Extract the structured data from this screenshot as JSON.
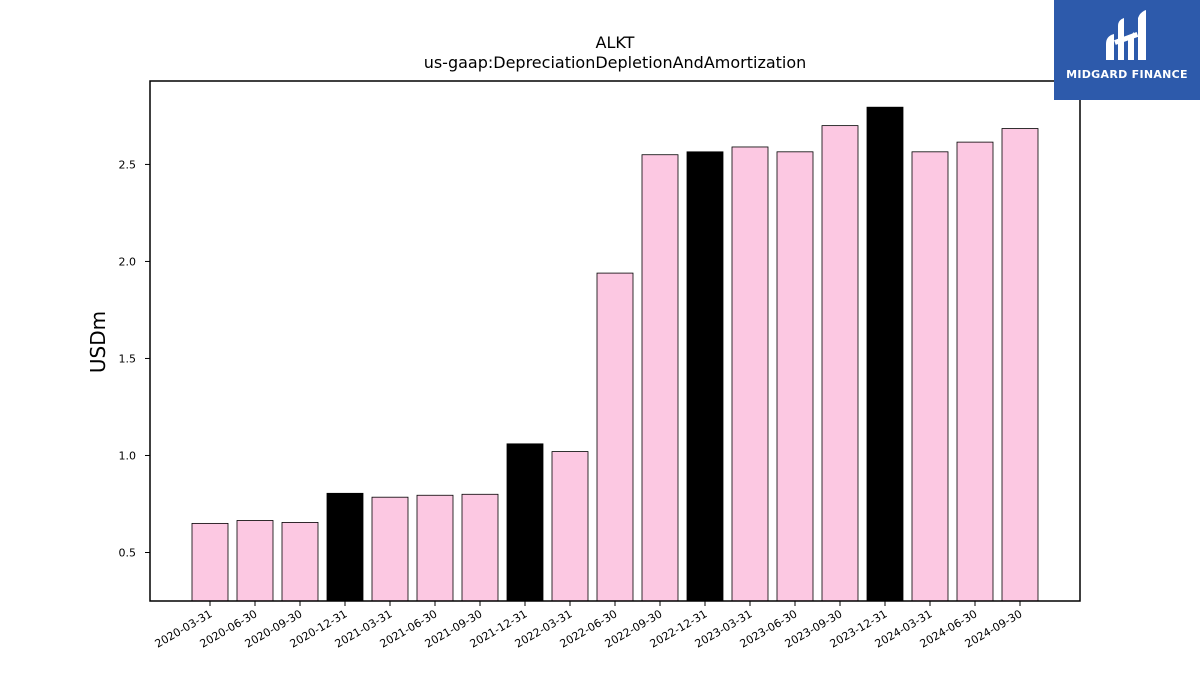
{
  "brand": {
    "name": "MIDGARD FINANCE",
    "bg_color": "#2d5aab"
  },
  "chart_data": {
    "type": "bar",
    "title": "ALKT",
    "subtitle": "us-gaap:DepreciationDepletionAndAmortization",
    "xlabel": "",
    "ylabel": "USDm",
    "ylim": [
      0.25,
      2.93
    ],
    "yticks": [
      0.5,
      1.0,
      1.5,
      2.0,
      2.5
    ],
    "grid": false,
    "colors": {
      "quarter": "#fcc8e2",
      "year_end": "#000000",
      "edge": "#000000"
    },
    "categories": [
      "2020-03-31",
      "2020-06-30",
      "2020-09-30",
      "2020-12-31",
      "2021-03-31",
      "2021-06-30",
      "2021-09-30",
      "2021-12-31",
      "2022-03-31",
      "2022-06-30",
      "2022-09-30",
      "2022-12-31",
      "2023-03-31",
      "2023-06-30",
      "2023-09-30",
      "2023-12-31",
      "2024-03-31",
      "2024-06-30",
      "2024-09-30"
    ],
    "values": [
      0.65,
      0.665,
      0.655,
      0.805,
      0.785,
      0.795,
      0.8,
      1.06,
      1.02,
      1.94,
      2.55,
      2.565,
      2.59,
      2.565,
      2.7,
      2.795,
      2.565,
      2.615,
      2.685
    ],
    "highlight": [
      false,
      false,
      false,
      true,
      false,
      false,
      false,
      true,
      false,
      false,
      false,
      true,
      false,
      false,
      false,
      true,
      false,
      false,
      false
    ]
  }
}
